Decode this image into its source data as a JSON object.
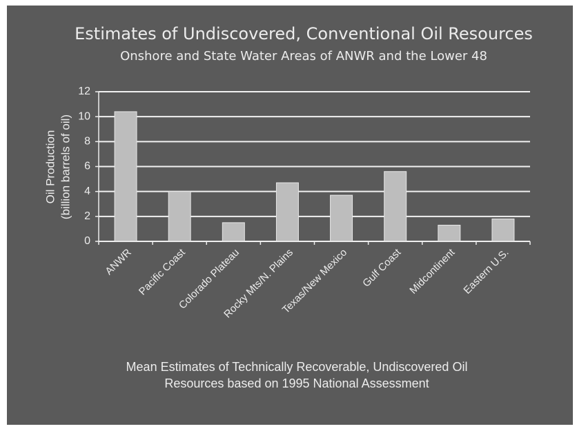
{
  "chart_data": {
    "type": "bar",
    "title": "Estimates of Undiscovered, Conventional Oil Resources",
    "subtitle": "Onshore and State Water Areas of ANWR and the Lower 48",
    "ylabel": [
      "Oil Production",
      "(billion barrels of oil)"
    ],
    "caption": [
      "Mean Estimates of Technically Recoverable, Undiscovered Oil",
      "Resources based on 1995 National Assessment"
    ],
    "categories": [
      "ANWR",
      "Pacific Coast",
      "Colorado Plateau",
      "Rocky Mts/N. Plains",
      "Texas/New Mexico",
      "Gulf Coast",
      "Midcontinent",
      "Eastern U.S."
    ],
    "values": [
      10.4,
      4.0,
      1.5,
      4.7,
      3.7,
      5.6,
      1.3,
      1.8
    ],
    "color": "#bdbdbd",
    "ylim": [
      0,
      12
    ],
    "yticks": [
      0,
      2,
      4,
      6,
      8,
      10,
      12
    ],
    "grid": true
  }
}
